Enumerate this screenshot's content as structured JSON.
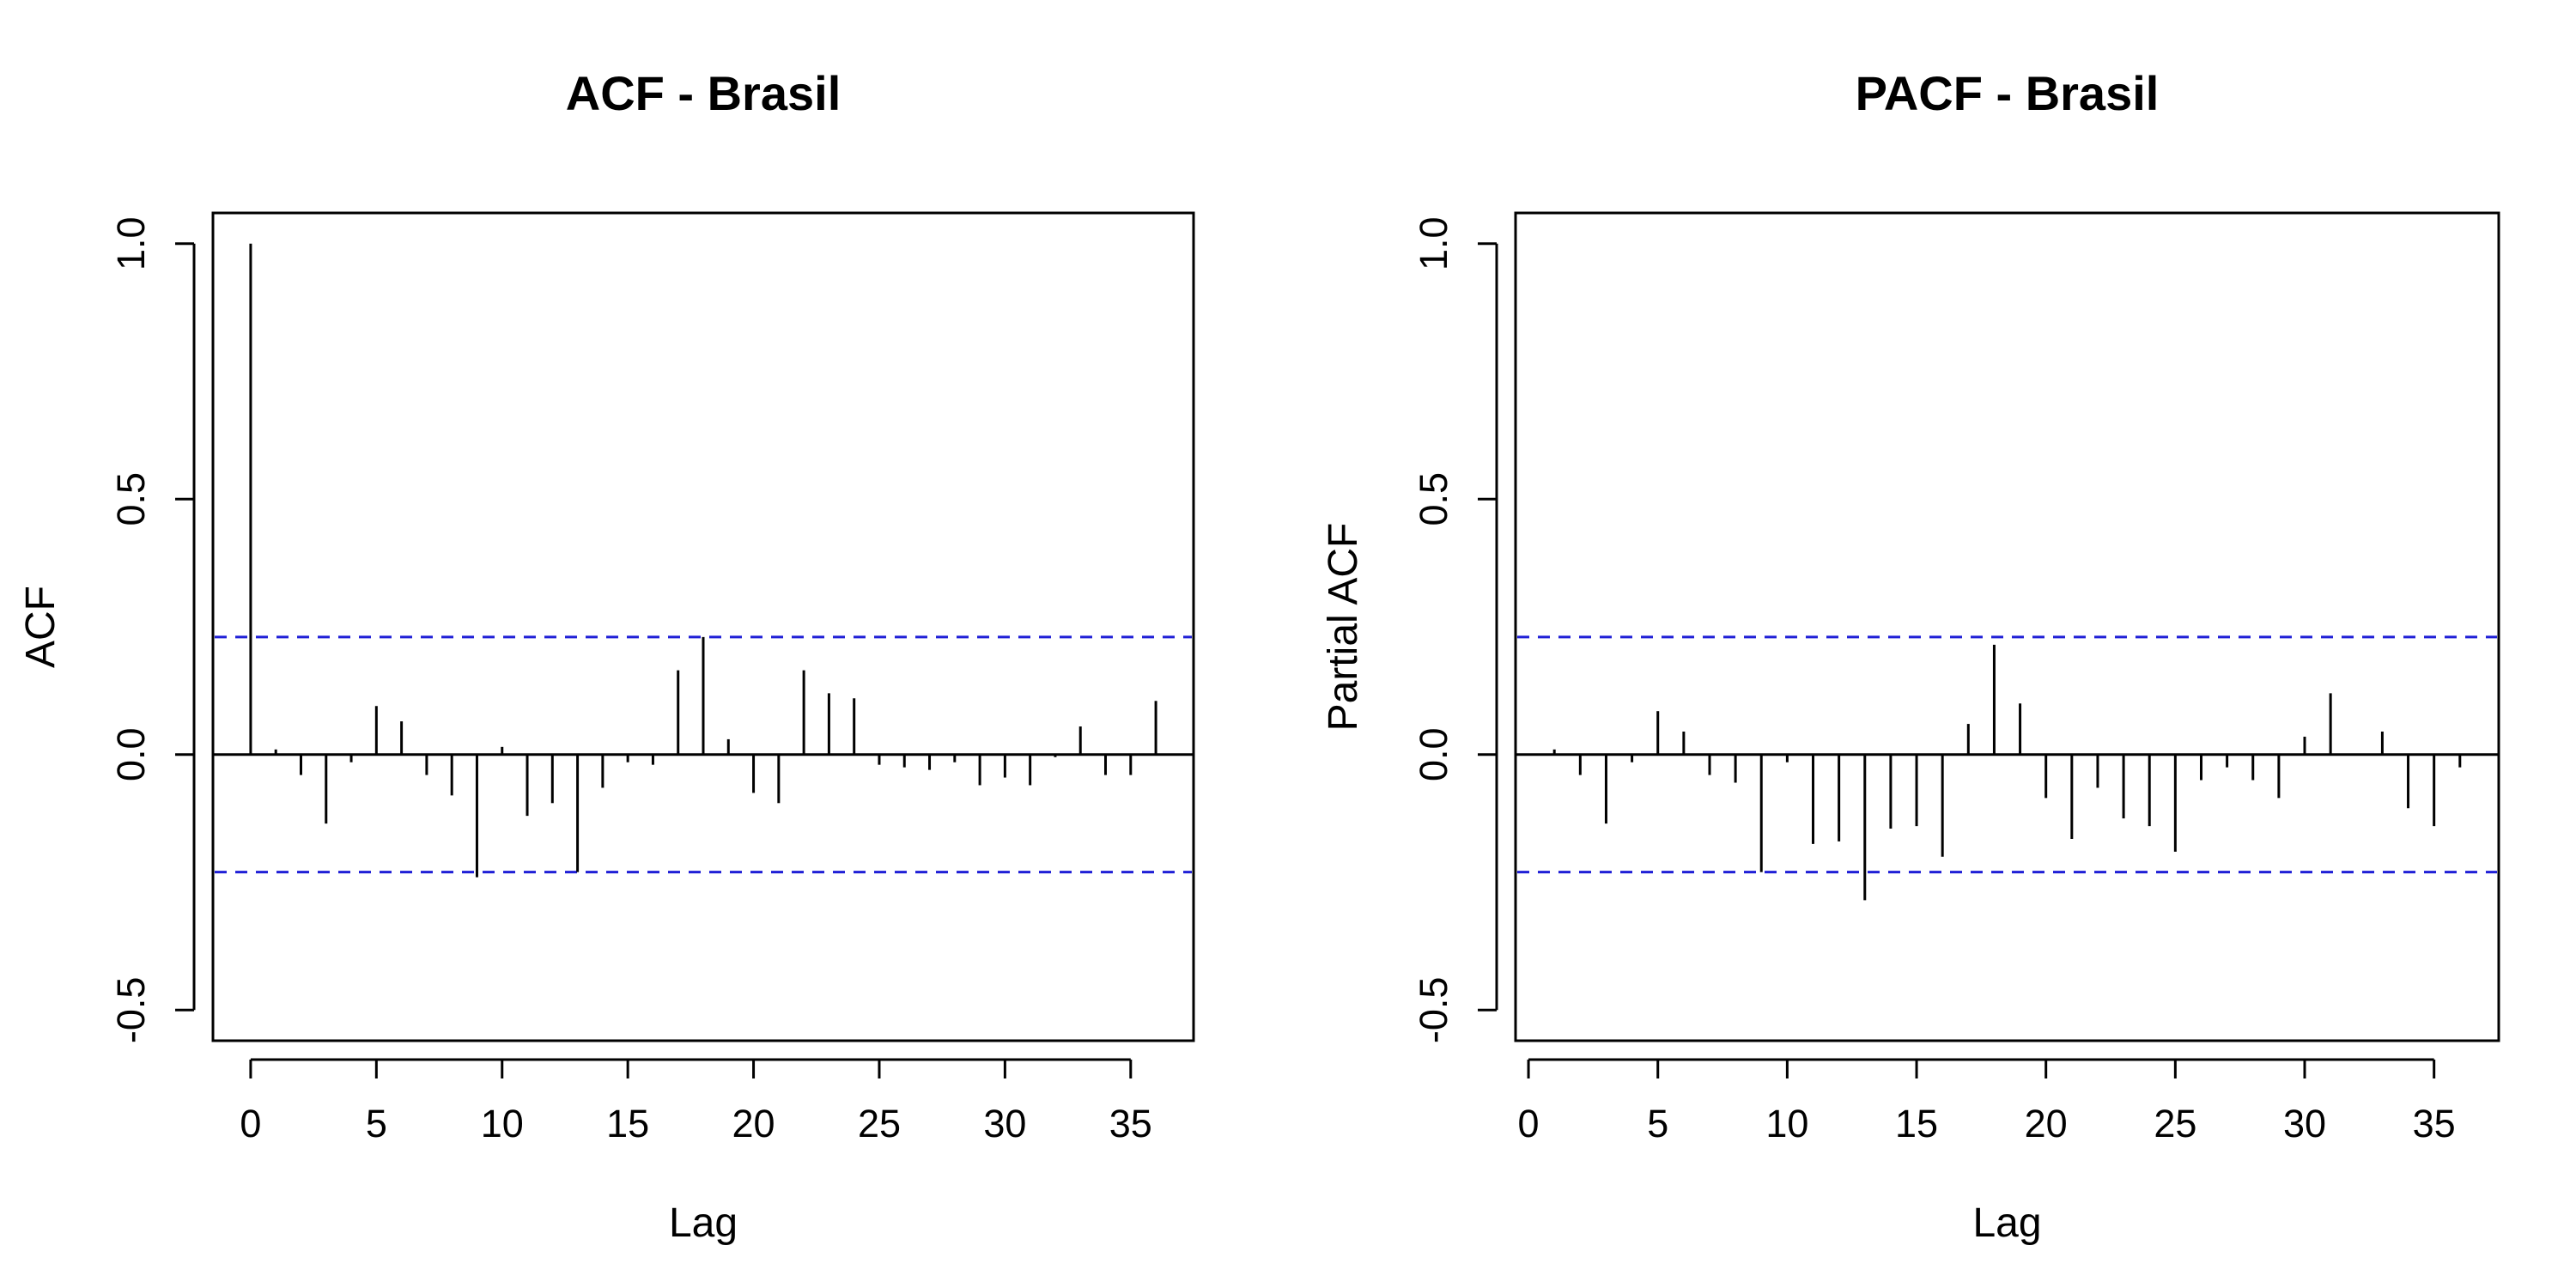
{
  "chart_data": [
    {
      "type": "bar",
      "title": "ACF - Brasil",
      "xlabel": "Lag",
      "ylabel": "ACF",
      "xlim": [
        -1.5,
        37.5
      ],
      "ylim": [
        -0.56,
        1.06
      ],
      "x_ticks": [
        0,
        5,
        10,
        15,
        20,
        25,
        30,
        35
      ],
      "y_ticks": [
        -0.5,
        0.0,
        0.5,
        1.0
      ],
      "x_tick_labels": [
        "0",
        "5",
        "10",
        "15",
        "20",
        "25",
        "30",
        "35"
      ],
      "y_tick_labels": [
        "-0.5",
        "0.0",
        "0.5",
        "1.0"
      ],
      "confidence_bound": 0.23,
      "grid": false,
      "lags": [
        0,
        1,
        2,
        3,
        4,
        5,
        6,
        7,
        8,
        9,
        10,
        11,
        12,
        13,
        14,
        15,
        16,
        17,
        18,
        19,
        20,
        21,
        22,
        23,
        24,
        25,
        26,
        27,
        28,
        29,
        30,
        31,
        32,
        33,
        34,
        35,
        36
      ],
      "values": [
        1.0,
        0.01,
        -0.04,
        -0.135,
        -0.015,
        0.095,
        0.065,
        -0.04,
        -0.08,
        -0.24,
        0.015,
        -0.12,
        -0.095,
        -0.23,
        -0.065,
        -0.015,
        -0.02,
        0.165,
        0.23,
        0.03,
        -0.075,
        -0.095,
        0.165,
        0.12,
        0.11,
        -0.02,
        -0.025,
        -0.03,
        -0.015,
        -0.06,
        -0.045,
        -0.06,
        -0.005,
        0.055,
        -0.04,
        -0.04,
        0.105
      ],
      "colors": {
        "bars": "#000000",
        "confidence": "#1f1fd6"
      }
    },
    {
      "type": "bar",
      "title": "PACF - Brasil",
      "xlabel": "Lag",
      "ylabel": "Partial ACF",
      "xlim": [
        -0.5,
        37.5
      ],
      "ylim": [
        -0.56,
        1.06
      ],
      "x_ticks": [
        0,
        5,
        10,
        15,
        20,
        25,
        30,
        35
      ],
      "y_ticks": [
        -0.5,
        0.0,
        0.5,
        1.0
      ],
      "x_tick_labels": [
        "0",
        "5",
        "10",
        "15",
        "20",
        "25",
        "30",
        "35"
      ],
      "y_tick_labels": [
        "-0.5",
        "0.0",
        "0.5",
        "1.0"
      ],
      "confidence_bound": 0.23,
      "grid": false,
      "lags": [
        1,
        2,
        3,
        4,
        5,
        6,
        7,
        8,
        9,
        10,
        11,
        12,
        13,
        14,
        15,
        16,
        17,
        18,
        19,
        20,
        21,
        22,
        23,
        24,
        25,
        26,
        27,
        28,
        29,
        30,
        31,
        32,
        33,
        34,
        35,
        36
      ],
      "values": [
        0.01,
        -0.04,
        -0.135,
        -0.015,
        0.085,
        0.045,
        -0.04,
        -0.055,
        -0.23,
        -0.015,
        -0.175,
        -0.17,
        -0.285,
        -0.145,
        -0.14,
        -0.2,
        0.06,
        0.215,
        0.1,
        -0.085,
        -0.165,
        -0.065,
        -0.125,
        -0.14,
        -0.19,
        -0.05,
        -0.025,
        -0.05,
        -0.085,
        0.035,
        0.12,
        0.0,
        0.045,
        -0.105,
        -0.14,
        -0.025
      ],
      "colors": {
        "bars": "#000000",
        "confidence": "#1f1fd6"
      }
    }
  ]
}
